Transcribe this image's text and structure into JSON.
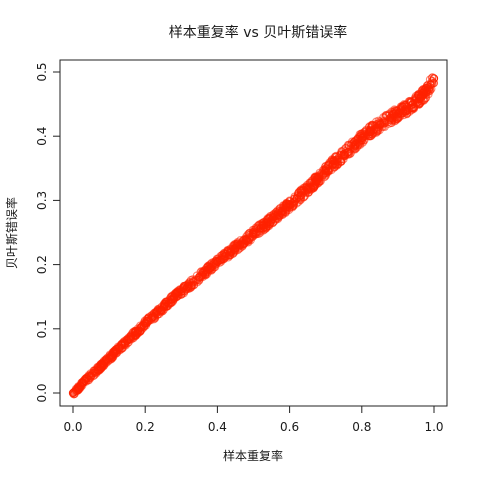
{
  "chart_data": {
    "type": "scatter",
    "title": "样本重复率 vs 贝叶斯错误率",
    "xlabel": "样本重复率",
    "ylabel": "贝叶斯错误率",
    "xlim": [
      0.0,
      1.0
    ],
    "ylim": [
      0.0,
      0.5
    ],
    "x_ticks": [
      "0.0",
      "0.2",
      "0.4",
      "0.6",
      "0.8",
      "1.0"
    ],
    "y_ticks": [
      "0.0",
      "0.1",
      "0.2",
      "0.3",
      "0.4",
      "0.5"
    ],
    "grid": false,
    "legend": "none",
    "marker": "open-circle",
    "point_color": "#ff2200",
    "series": [
      {
        "x": [
          0.0,
          0.02,
          0.05,
          0.08,
          0.1,
          0.12,
          0.15,
          0.18,
          0.2,
          0.22,
          0.25,
          0.28,
          0.3,
          0.32,
          0.35,
          0.38,
          0.4,
          0.42,
          0.45,
          0.48,
          0.5,
          0.52,
          0.55,
          0.58,
          0.6,
          0.62,
          0.65,
          0.68,
          0.7,
          0.72,
          0.75,
          0.78,
          0.8,
          0.82,
          0.85,
          0.88,
          0.9,
          0.92,
          0.94,
          0.96,
          0.97,
          0.98,
          0.99,
          1.0
        ],
        "y": [
          0.0,
          0.011,
          0.027,
          0.043,
          0.054,
          0.065,
          0.081,
          0.097,
          0.108,
          0.118,
          0.133,
          0.149,
          0.158,
          0.167,
          0.181,
          0.195,
          0.204,
          0.213,
          0.226,
          0.239,
          0.248,
          0.257,
          0.27,
          0.284,
          0.293,
          0.303,
          0.318,
          0.334,
          0.346,
          0.357,
          0.372,
          0.387,
          0.397,
          0.406,
          0.418,
          0.429,
          0.435,
          0.442,
          0.449,
          0.458,
          0.464,
          0.471,
          0.48,
          0.49
        ]
      }
    ]
  }
}
